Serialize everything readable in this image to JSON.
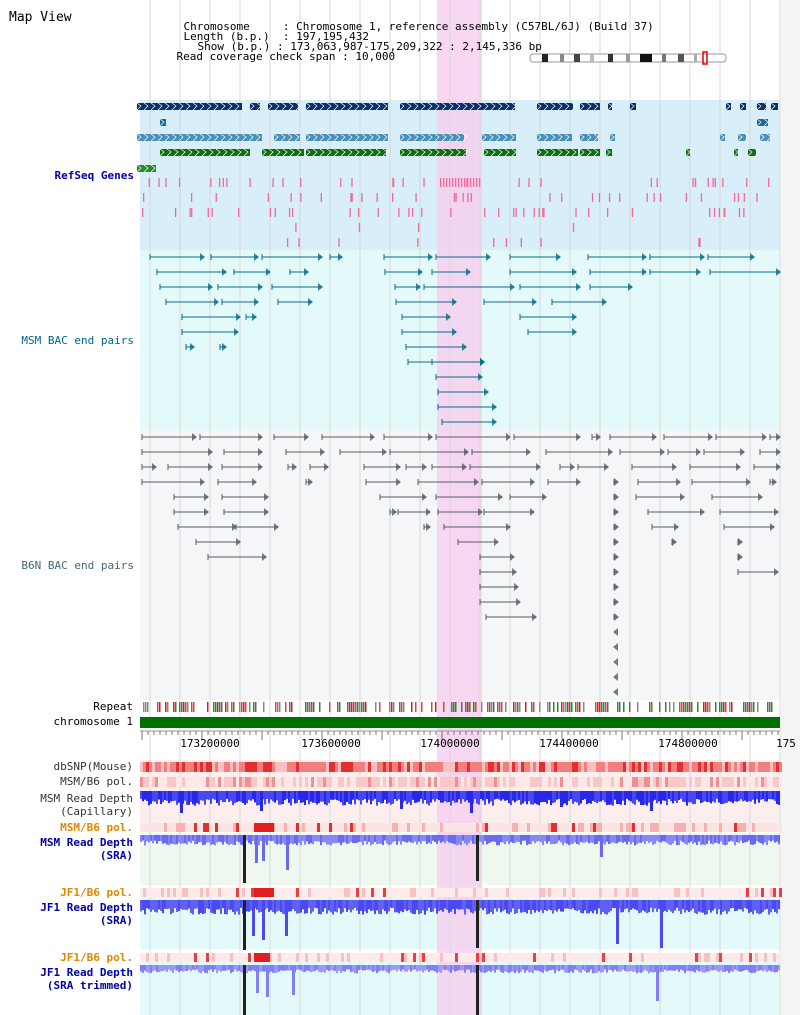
{
  "header": {
    "title": "Map View",
    "chromosome_key": "Chromosome",
    "chromosome_value": "Chromosome 1, reference assembly (C57BL/6J) (Build 37)",
    "length_key": "Length (b.p.)",
    "length_value": "197,195,432",
    "show_key": "Show (b.p.)",
    "show_value": "173,063,987-175,209,322 : 2,145,336 bp",
    "span_key": "Read coverage check span",
    "span_value": "10,000"
  },
  "tracks": {
    "refseq": "RefSeq Genes",
    "msm_bac": "MSM BAC end pairs",
    "b6n_bac": "B6N BAC end pairs",
    "repeat": "Repeat",
    "chromosome": "chromosome 1",
    "dbsnp": "dbSNP(Mouse)",
    "msm_b6_pol_1": "MSM/B6 pol.",
    "msm_read_depth_cap_1": "MSM Read Depth",
    "msm_read_depth_cap_2": "(Capillary)",
    "msm_b6_pol_2": "MSM/B6 pol.",
    "msm_read_depth_sra_1": "MSM Read Depth",
    "msm_read_depth_sra_2": "(SRA)",
    "jf1_b6_pol_1": "JF1/B6 pol.",
    "jf1_read_depth_sra_1": "JF1 Read Depth",
    "jf1_read_depth_sra_2": "(SRA)",
    "jf1_b6_pol_2": "JF1/B6 pol.",
    "jf1_read_depth_trim_1": "JF1 Read Depth",
    "jf1_read_depth_trim_2": "(SRA trimmed)"
  },
  "axis": {
    "ticks": [
      "173200000",
      "173600000",
      "174000000",
      "174400000",
      "174800000",
      "175"
    ]
  },
  "colors": {
    "refseq_bg": "#d8eef8",
    "bac_bg": "#e4fafa",
    "highlight": "#f6d0ee",
    "chromosome_bar": "#007000",
    "refseq_label": "#0000aa",
    "msm_label": "#006688",
    "b6n_label": "#446677",
    "pol_label": "#dd8800",
    "depth_label": "#0000aa"
  }
}
